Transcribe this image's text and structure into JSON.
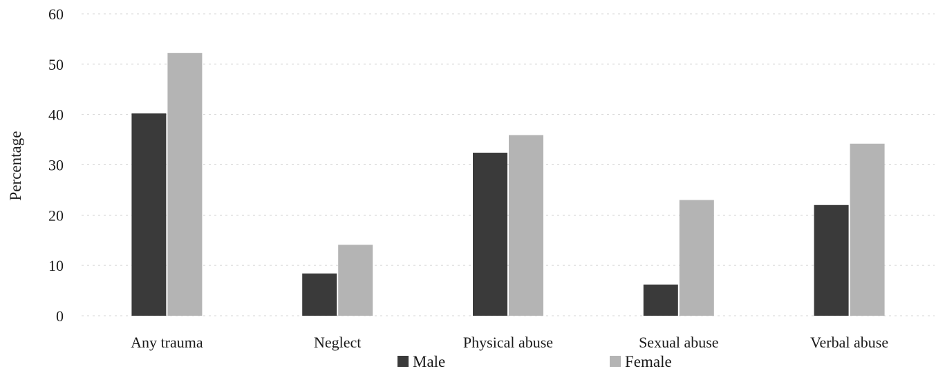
{
  "chart_data": {
    "type": "bar",
    "title": "",
    "xlabel": "",
    "ylabel": "Percentage",
    "ylim": [
      0,
      60
    ],
    "yticks": [
      0,
      10,
      20,
      30,
      40,
      50,
      60
    ],
    "grid": true,
    "legend_position": "bottom",
    "categories": [
      "Any trauma",
      "Neglect",
      "Physical abuse",
      "Sexual abuse",
      "Verbal abuse"
    ],
    "series": [
      {
        "name": "Male",
        "color": "#3a3a3a",
        "values": [
          40.2,
          8.4,
          32.4,
          6.2,
          22.0
        ]
      },
      {
        "name": "Female",
        "color": "#b4b4b4",
        "values": [
          52.2,
          14.1,
          35.9,
          23.0,
          34.2
        ]
      }
    ]
  }
}
